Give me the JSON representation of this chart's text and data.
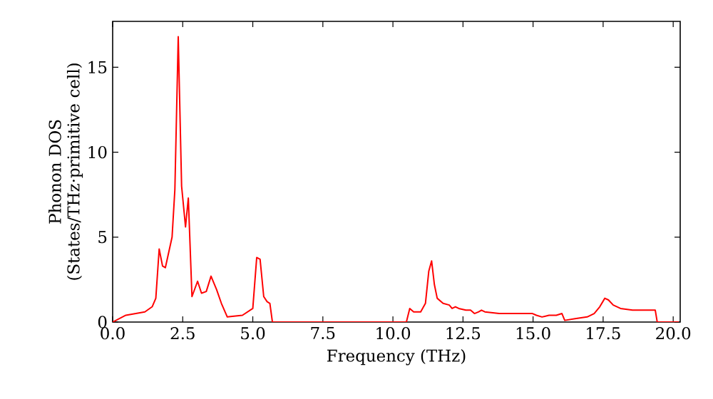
{
  "chart_data": {
    "type": "line",
    "xlabel": "Frequency (THz)",
    "ylabel": "Phonon DOS (States/THz·primitive cell)",
    "xlim": [
      0,
      20.25
    ],
    "ylim": [
      0,
      17.7
    ],
    "xticks": [
      {
        "value": 0,
        "label": "0.0"
      },
      {
        "value": 2.5,
        "label": "2.5"
      },
      {
        "value": 5,
        "label": "5.0"
      },
      {
        "value": 7.5,
        "label": "7.5"
      },
      {
        "value": 10,
        "label": "10.0"
      },
      {
        "value": 12.5,
        "label": "12.5"
      },
      {
        "value": 15,
        "label": "15.0"
      },
      {
        "value": 17.5,
        "label": "17.5"
      },
      {
        "value": 20,
        "label": "20.0"
      }
    ],
    "yticks": [
      0,
      5,
      10,
      15
    ],
    "marker": "none",
    "line_style": "solid",
    "series": [
      {
        "color": "#ff0000",
        "x": [
          0,
          0.47,
          1.15,
          1.41,
          1.54,
          1.66,
          1.78,
          1.88,
          2.12,
          2.22,
          2.34,
          2.46,
          2.6,
          2.7,
          2.83,
          3.03,
          3.17,
          3.34,
          3.51,
          3.71,
          3.88,
          4.09,
          4.63,
          5.0,
          5.14,
          5.26,
          5.39,
          5.51,
          5.61,
          5.7,
          10.48,
          10.6,
          10.74,
          10.99,
          11.16,
          11.28,
          11.38,
          11.48,
          11.58,
          11.79,
          12.01,
          12.11,
          12.23,
          12.35,
          12.6,
          12.77,
          12.91,
          13.06,
          13.16,
          13.28,
          13.79,
          14.98,
          15.12,
          15.32,
          15.57,
          15.83,
          16.03,
          16.13,
          16.5,
          16.93,
          17.18,
          17.38,
          17.56,
          17.69,
          17.86,
          18.12,
          18.55,
          19.36,
          19.43,
          20.2
        ],
        "values": [
          0,
          0.4,
          0.6,
          0.9,
          1.4,
          4.3,
          3.3,
          3.2,
          5.0,
          7.8,
          16.8,
          8.0,
          5.6,
          7.3,
          1.5,
          2.4,
          1.7,
          1.8,
          2.7,
          1.9,
          1.1,
          0.3,
          0.4,
          0.8,
          3.8,
          3.7,
          1.5,
          1.2,
          1.1,
          0,
          0,
          0.8,
          0.6,
          0.6,
          1.1,
          3.0,
          3.6,
          2.2,
          1.4,
          1.1,
          1.0,
          0.8,
          0.9,
          0.8,
          0.7,
          0.7,
          0.5,
          0.6,
          0.7,
          0.6,
          0.5,
          0.5,
          0.4,
          0.3,
          0.4,
          0.4,
          0.5,
          0.1,
          0.2,
          0.3,
          0.5,
          0.9,
          1.4,
          1.3,
          1.0,
          0.8,
          0.7,
          0.7,
          0,
          0
        ]
      }
    ]
  }
}
